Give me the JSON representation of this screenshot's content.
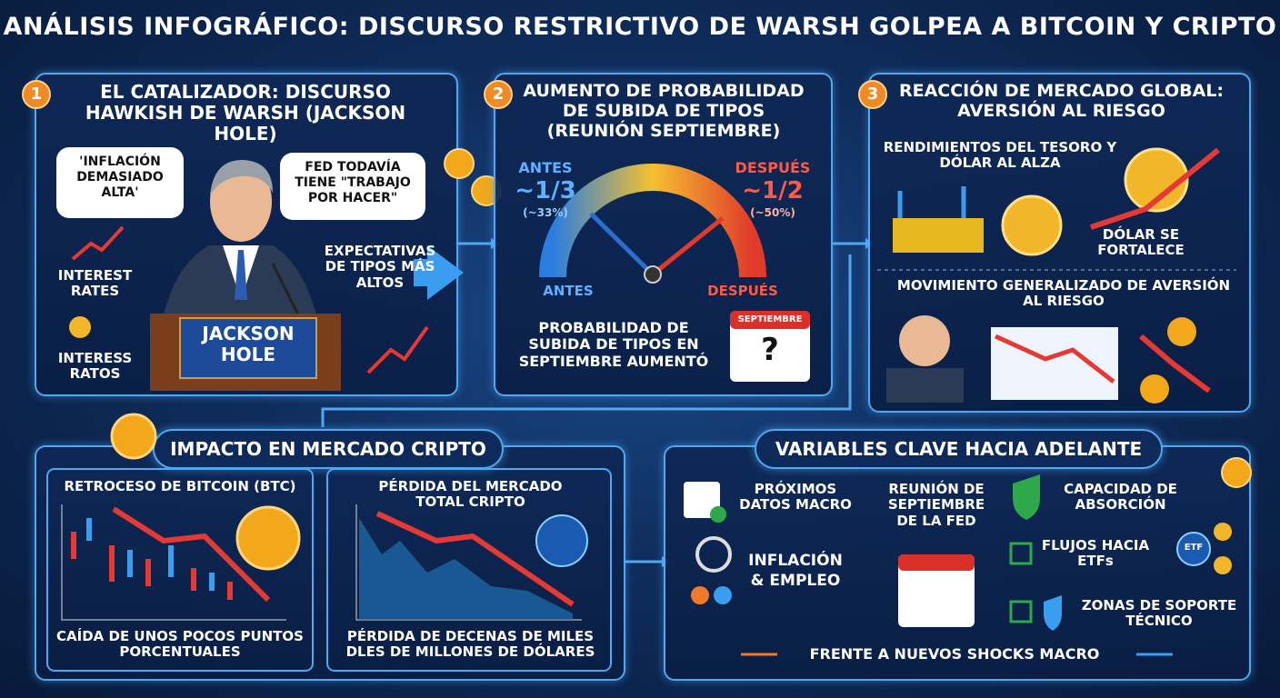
{
  "header": {
    "title": "ANÁLISIS INFOGRÁFICO: DISCURSO RESTRICTIVO DE WARSH GOLPEA A BITCOIN Y CRIPTO"
  },
  "panels": [
    {
      "number": "1",
      "title": "EL CATALIZADOR: DISCURSO HAWKISH DE WARSH (JACKSON HOLE)",
      "quote_1": "'INFLACIÓN DEMASIADO ALTA'",
      "quote_2": "FED TODAVÍA TIENE \"TRABAJO POR HACER\"",
      "icon_label_1": "INTEREST RATES",
      "icon_label_2": "INTERESS RATOS",
      "podium": "JACKSON HOLE",
      "arrow_label": "EXPECTATIVAS DE TIPOS MÁS ALTOS"
    },
    {
      "number": "2",
      "title": "AUMENTO DE PROBABILIDAD DE SUBIDA DE TIPOS (REUNIÓN SEPTIEMBRE)",
      "before": {
        "label": "ANTES",
        "value": "~1/3",
        "percent": "(~33%)"
      },
      "after": {
        "label": "DESPUÉS",
        "value": "~1/2",
        "percent": "(~50%)"
      },
      "gauge_left": "ANTES",
      "gauge_right": "DESPUÉS",
      "caption": "PROBABILIDAD DE SUBIDA DE TIPOS EN SEPTIEMBRE AUMENTÓ",
      "calendar_month": "SEPTIEMBRE",
      "calendar_mark": "?"
    },
    {
      "number": "3",
      "title": "REACCIÓN DE MERCADO GLOBAL: AVERSIÓN AL RIESGO",
      "section_1": "RENDIMIENTOS DEL TESORO Y DÓLAR AL ALZA",
      "dollar_label": "DÓLAR SE FORTALECE",
      "section_2": "MOVIMIENTO GENERALIZADO DE AVERSIÓN AL RIESGO"
    }
  ],
  "crypto_impact": {
    "title": "IMPACTO EN MERCADO CRIPTO",
    "bitcoin": {
      "title": "RETROCESO DE BITCOIN (BTC)",
      "caption": "CAÍDA DE UNOS POCOS PUNTOS PORCENTUALES"
    },
    "total_market": {
      "title": "PÉRDIDA DEL MERCADO TOTAL CRIPTO",
      "caption": "PÉRDIDA DE DECENAS DE MILES DLES DE MILLONES DE DÓLARES"
    }
  },
  "outlook": {
    "title": "VARIABLES CLAVE HACIA ADELANTE",
    "items": [
      "PRÓXIMOS DATOS MACRO",
      "INFLACIÓN & EMPLEO",
      "REUNIÓN DE SEPTIEMBRE DE LA FED",
      "CAPACIDAD DE ABSORCIÓN",
      "FLUJOS HACIA ETFs",
      "ZONAS DE SOPORTE TÉCNICO"
    ],
    "etf_icon": "ETF",
    "footer": "FRENTE A NUEVOS SHOCKS MACRO"
  }
}
